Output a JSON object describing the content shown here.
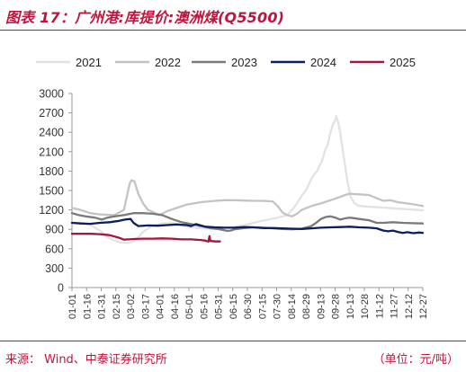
{
  "title": "图表 17：广州港:库提价:澳洲煤(Q5500)",
  "source": "来源：   Wind、中泰证券研究所",
  "unit": "（单位：元/吨）",
  "chart_data": {
    "type": "line",
    "ylim": [
      0,
      3000
    ],
    "yticks": [
      0,
      300,
      600,
      900,
      1200,
      1500,
      1800,
      2100,
      2400,
      2700,
      3000
    ],
    "xrange": [
      1,
      366
    ],
    "xtick_labels": [
      "01-01",
      "01-16",
      "01-31",
      "02-15",
      "03-02",
      "03-17",
      "04-01",
      "04-16",
      "05-01",
      "05-16",
      "05-31",
      "06-15",
      "06-30",
      "07-15",
      "07-30",
      "08-14",
      "08-29",
      "09-13",
      "09-28",
      "10-13",
      "10-28",
      "11-12",
      "11-27",
      "12-12",
      "12-27"
    ],
    "legend_position": "top",
    "grid": false,
    "series": [
      {
        "name": "2021",
        "color": "#e2e2e2",
        "points": [
          [
            1,
            1005
          ],
          [
            10,
            1002
          ],
          [
            20,
            970
          ],
          [
            30,
            880
          ],
          [
            40,
            760
          ],
          [
            50,
            700
          ],
          [
            60,
            690
          ],
          [
            66,
            720
          ],
          [
            75,
            860
          ],
          [
            85,
            960
          ],
          [
            95,
            990
          ],
          [
            105,
            1000
          ],
          [
            115,
            960
          ],
          [
            125,
            930
          ],
          [
            135,
            920
          ],
          [
            145,
            905
          ],
          [
            155,
            915
          ],
          [
            165,
            930
          ],
          [
            175,
            950
          ],
          [
            185,
            980
          ],
          [
            195,
            1020
          ],
          [
            205,
            1050
          ],
          [
            215,
            1080
          ],
          [
            225,
            1120
          ],
          [
            230,
            1200
          ],
          [
            235,
            1300
          ],
          [
            240,
            1420
          ],
          [
            245,
            1520
          ],
          [
            250,
            1680
          ],
          [
            253,
            1750
          ],
          [
            256,
            1800
          ],
          [
            259,
            1900
          ],
          [
            261,
            1950
          ],
          [
            263,
            2050
          ],
          [
            265,
            2150
          ],
          [
            267,
            2200
          ],
          [
            269,
            2350
          ],
          [
            271,
            2450
          ],
          [
            273,
            2540
          ],
          [
            275,
            2580
          ],
          [
            276,
            2650
          ],
          [
            278,
            2550
          ],
          [
            280,
            2400
          ],
          [
            282,
            2200
          ],
          [
            284,
            2000
          ],
          [
            286,
            1800
          ],
          [
            288,
            1600
          ],
          [
            291,
            1400
          ],
          [
            295,
            1300
          ],
          [
            300,
            1260
          ],
          [
            310,
            1250
          ],
          [
            320,
            1240
          ],
          [
            330,
            1230
          ],
          [
            340,
            1220
          ],
          [
            350,
            1210
          ],
          [
            360,
            1200
          ],
          [
            366,
            1195
          ]
        ]
      },
      {
        "name": "2022",
        "color": "#c3c3c3",
        "points": [
          [
            1,
            1230
          ],
          [
            10,
            1200
          ],
          [
            20,
            1150
          ],
          [
            30,
            1130
          ],
          [
            45,
            1120
          ],
          [
            55,
            1200
          ],
          [
            58,
            1400
          ],
          [
            61,
            1600
          ],
          [
            63,
            1660
          ],
          [
            66,
            1640
          ],
          [
            70,
            1450
          ],
          [
            75,
            1300
          ],
          [
            80,
            1200
          ],
          [
            85,
            1170
          ],
          [
            92,
            1120
          ],
          [
            100,
            1180
          ],
          [
            110,
            1230
          ],
          [
            120,
            1280
          ],
          [
            135,
            1320
          ],
          [
            150,
            1340
          ],
          [
            160,
            1350
          ],
          [
            170,
            1350
          ],
          [
            180,
            1345
          ],
          [
            190,
            1340
          ],
          [
            200,
            1340
          ],
          [
            210,
            1330
          ],
          [
            215,
            1260
          ],
          [
            220,
            1160
          ],
          [
            225,
            1120
          ],
          [
            230,
            1100
          ],
          [
            235,
            1140
          ],
          [
            240,
            1200
          ],
          [
            250,
            1260
          ],
          [
            260,
            1300
          ],
          [
            270,
            1350
          ],
          [
            280,
            1400
          ],
          [
            285,
            1430
          ],
          [
            290,
            1450
          ],
          [
            300,
            1440
          ],
          [
            310,
            1430
          ],
          [
            318,
            1380
          ],
          [
            325,
            1340
          ],
          [
            332,
            1350
          ],
          [
            340,
            1320
          ],
          [
            350,
            1300
          ],
          [
            358,
            1280
          ],
          [
            366,
            1260
          ]
        ]
      },
      {
        "name": "2023",
        "color": "#7a7a7a",
        "points": [
          [
            1,
            1150
          ],
          [
            8,
            1120
          ],
          [
            15,
            1100
          ],
          [
            25,
            1080
          ],
          [
            32,
            1050
          ],
          [
            38,
            1080
          ],
          [
            45,
            1100
          ],
          [
            55,
            1120
          ],
          [
            65,
            1150
          ],
          [
            75,
            1150
          ],
          [
            85,
            1140
          ],
          [
            95,
            1120
          ],
          [
            105,
            1060
          ],
          [
            115,
            1010
          ],
          [
            125,
            980
          ],
          [
            135,
            950
          ],
          [
            145,
            920
          ],
          [
            155,
            900
          ],
          [
            163,
            875
          ],
          [
            166,
            880
          ],
          [
            170,
            900
          ],
          [
            180,
            920
          ],
          [
            190,
            930
          ],
          [
            200,
            925
          ],
          [
            210,
            915
          ],
          [
            220,
            905
          ],
          [
            230,
            900
          ],
          [
            240,
            910
          ],
          [
            250,
            950
          ],
          [
            255,
            1000
          ],
          [
            260,
            1060
          ],
          [
            265,
            1090
          ],
          [
            270,
            1100
          ],
          [
            275,
            1080
          ],
          [
            280,
            1050
          ],
          [
            285,
            1070
          ],
          [
            290,
            1080
          ],
          [
            300,
            1060
          ],
          [
            310,
            1040
          ],
          [
            318,
            1000
          ],
          [
            325,
            1000
          ],
          [
            335,
            1010
          ],
          [
            345,
            1000
          ],
          [
            355,
            995
          ],
          [
            366,
            990
          ]
        ]
      },
      {
        "name": "2024",
        "color": "#0b1f5c",
        "points": [
          [
            1,
            1000
          ],
          [
            10,
            990
          ],
          [
            20,
            985
          ],
          [
            30,
            1000
          ],
          [
            40,
            1010
          ],
          [
            50,
            1030
          ],
          [
            56,
            1050
          ],
          [
            62,
            1060
          ],
          [
            65,
            1000
          ],
          [
            70,
            950
          ],
          [
            80,
            960
          ],
          [
            90,
            955
          ],
          [
            100,
            965
          ],
          [
            110,
            975
          ],
          [
            120,
            965
          ],
          [
            125,
            950
          ],
          [
            130,
            980
          ],
          [
            140,
            940
          ],
          [
            150,
            930
          ],
          [
            160,
            925
          ],
          [
            170,
            925
          ],
          [
            180,
            935
          ],
          [
            190,
            930
          ],
          [
            200,
            920
          ],
          [
            210,
            920
          ],
          [
            220,
            915
          ],
          [
            230,
            910
          ],
          [
            240,
            905
          ],
          [
            250,
            915
          ],
          [
            260,
            925
          ],
          [
            270,
            930
          ],
          [
            280,
            935
          ],
          [
            290,
            940
          ],
          [
            300,
            930
          ],
          [
            310,
            925
          ],
          [
            318,
            915
          ],
          [
            325,
            880
          ],
          [
            330,
            870
          ],
          [
            335,
            880
          ],
          [
            340,
            860
          ],
          [
            345,
            845
          ],
          [
            350,
            855
          ],
          [
            356,
            840
          ],
          [
            362,
            850
          ],
          [
            366,
            845
          ]
        ]
      },
      {
        "name": "2025",
        "color": "#a6153a",
        "points": [
          [
            1,
            830
          ],
          [
            10,
            830
          ],
          [
            20,
            830
          ],
          [
            30,
            825
          ],
          [
            40,
            810
          ],
          [
            45,
            790
          ],
          [
            50,
            770
          ],
          [
            55,
            740
          ],
          [
            60,
            745
          ],
          [
            65,
            750
          ],
          [
            75,
            755
          ],
          [
            85,
            755
          ],
          [
            95,
            760
          ],
          [
            105,
            755
          ],
          [
            115,
            745
          ],
          [
            125,
            745
          ],
          [
            135,
            735
          ],
          [
            140,
            725
          ],
          [
            143,
            710
          ],
          [
            144,
            795
          ],
          [
            145,
            720
          ],
          [
            150,
            712
          ],
          [
            155,
            712
          ]
        ]
      }
    ]
  }
}
